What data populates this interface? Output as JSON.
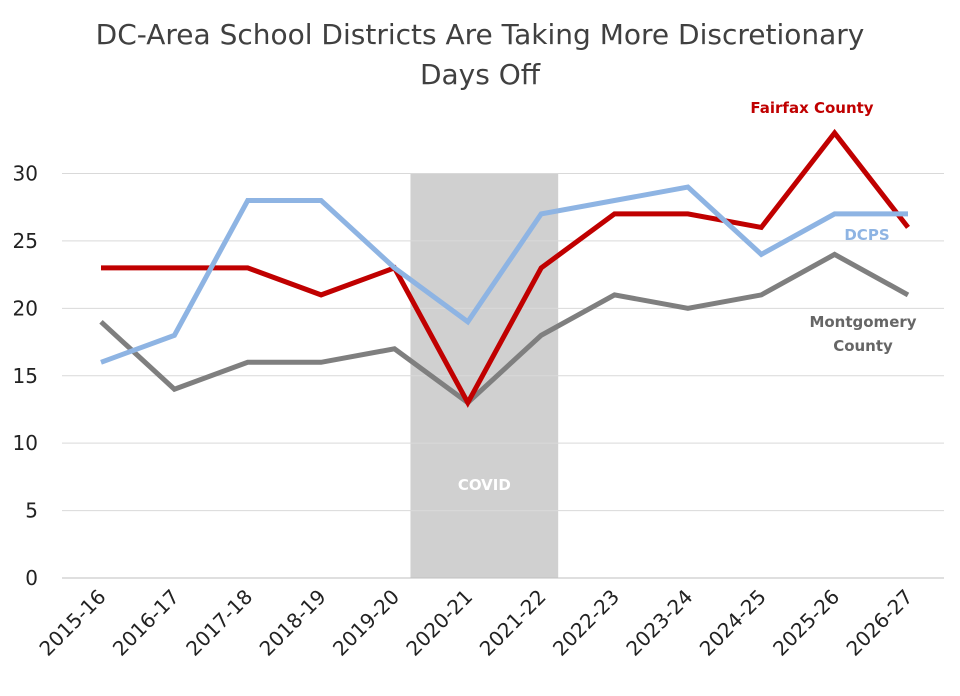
{
  "chart_data": {
    "type": "line",
    "title": "DC-Area School Districts Are Taking More Discretionary Days Off",
    "title_lines": [
      "DC-Area School Districts Are Taking More Discretionary",
      "Days Off"
    ],
    "xlabel": "",
    "ylabel": "",
    "categories": [
      "2015-16",
      "2016-17",
      "2017-18",
      "2018-19",
      "2019-20",
      "2020-21",
      "2021-22",
      "2022-23",
      "2023-24",
      "2024-25",
      "2025-26",
      "2026-27"
    ],
    "y_ticks": [
      0,
      5,
      10,
      15,
      20,
      25,
      30
    ],
    "ylim": [
      0,
      30
    ],
    "grid": true,
    "legend": "none",
    "series": [
      {
        "name": "Fairfax County",
        "color": "#c00000",
        "values": [
          23,
          23,
          23,
          21,
          23,
          13,
          23,
          27,
          27,
          26,
          33,
          26
        ]
      },
      {
        "name": "DCPS",
        "color": "#8eb4e3",
        "values": [
          16,
          18,
          28,
          28,
          23,
          19,
          27,
          28,
          29,
          24,
          27,
          27
        ]
      },
      {
        "name": "Montgomery County",
        "name_lines": [
          "Montgomery",
          "County"
        ],
        "color": "#7f7f7f",
        "values": [
          19,
          14,
          16,
          16,
          17,
          13,
          18,
          21,
          20,
          21,
          24,
          21
        ]
      }
    ],
    "annotations": [
      {
        "text": "COVID",
        "type": "shaded-band",
        "x_start": "2019-20",
        "x_end": "2021-22",
        "color": "#d0d0d0"
      }
    ]
  }
}
